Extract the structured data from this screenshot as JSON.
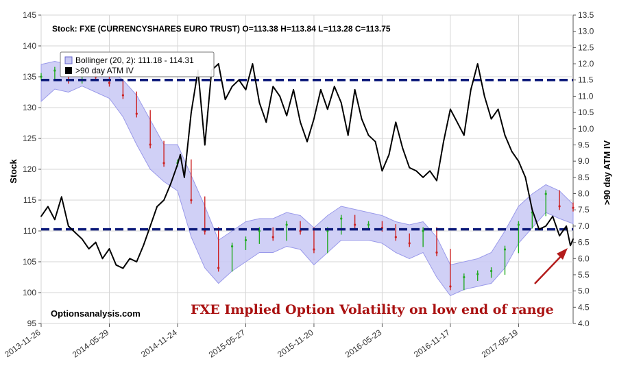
{
  "chart_data": {
    "type": "line",
    "info_line": "Stock: FXE (CURRENCYSHARES EURO TRUST) O=113.38  H=113.84  L=113.28  C=113.75",
    "ylabel_left": "Stock",
    "ylabel_right": ">90 day ATM IV",
    "ylim_left": [
      95,
      145
    ],
    "ylim_right": [
      4.0,
      13.5
    ],
    "yticks_left": [
      "95",
      "100",
      "105",
      "110",
      "115",
      "120",
      "125",
      "130",
      "135",
      "140",
      "145"
    ],
    "yticks_right": [
      "4.0",
      "4.5",
      "5.0",
      "5.5",
      "6.0",
      "6.5",
      "7.0",
      "7.5",
      "8.0",
      "8.5",
      "9.0",
      "9.5",
      "10.0",
      "10.5",
      "11.0",
      "11.5",
      "12.0",
      "12.5",
      "13.0",
      "13.5"
    ],
    "x_ticks": [
      "2013-11-26",
      "2014-05-29",
      "2014-11-24",
      "2015-05-27",
      "2015-11-20",
      "2016-05-23",
      "2016-11-17",
      "2017-05-19"
    ],
    "x_positions": [
      0,
      0.5,
      1,
      1.5,
      2,
      2.5,
      3,
      3.5
    ],
    "x_max": 3.9,
    "grid": true,
    "legend": {
      "position": "top-left",
      "entries": [
        {
          "label": "Bollinger (20, 2): 111.18 - 114.31",
          "color": "#9999ee"
        },
        {
          "label": ">90 day ATM IV",
          "color": "#000000"
        }
      ]
    },
    "reference_lines_iv": [
      11.5,
      6.9
    ],
    "watermark": "Optionsanalysis.com",
    "annotation": "FXE Implied Option Volatility on low end of range",
    "annotation_color": "#aa1111",
    "colors": {
      "price_up": "#22aa22",
      "price_down": "#cc2222",
      "band_fill": "#c8c8f4",
      "band_edge": "#9a9aea",
      "iv_line": "#000000",
      "ref_line": "#0c1a7a"
    },
    "price_series": {
      "name": "FXE",
      "x": [
        0,
        0.1,
        0.2,
        0.3,
        0.4,
        0.5,
        0.6,
        0.7,
        0.8,
        0.9,
        1.0,
        1.1,
        1.2,
        1.3,
        1.4,
        1.5,
        1.6,
        1.7,
        1.8,
        1.9,
        2.0,
        2.1,
        2.2,
        2.3,
        2.4,
        2.5,
        2.6,
        2.7,
        2.8,
        2.9,
        3.0,
        3.1,
        3.2,
        3.3,
        3.4,
        3.5,
        3.6,
        3.7,
        3.8,
        3.9
      ],
      "y": [
        135,
        136,
        134.5,
        136,
        135,
        134,
        132,
        129,
        124,
        121,
        121,
        115,
        110,
        104,
        107.5,
        108.5,
        110,
        109,
        111,
        110,
        107,
        110,
        112,
        111,
        111,
        110.5,
        109,
        108,
        110,
        106.5,
        101,
        102.5,
        103,
        103.5,
        107,
        111,
        113,
        116,
        114,
        113.75
      ]
    },
    "bollinger_band": {
      "upper": [
        137,
        137.5,
        137,
        137.5,
        136.5,
        136,
        134.5,
        132,
        128,
        124,
        124,
        119,
        114,
        108.5,
        110,
        111.5,
        112,
        112,
        113,
        112.5,
        110.5,
        112.5,
        114,
        113.5,
        113,
        112.5,
        111.5,
        111,
        111.5,
        109,
        104.5,
        105,
        105.5,
        106.5,
        110,
        114,
        116,
        117.5,
        116.5,
        114.31
      ],
      "lower": [
        131,
        133,
        132.5,
        133.5,
        132.5,
        131.5,
        128.5,
        124,
        120,
        118,
        116.5,
        109,
        104,
        101.5,
        103.5,
        105,
        106.5,
        106.5,
        107.5,
        107,
        104.5,
        106.5,
        108.5,
        108.5,
        108.5,
        108,
        106.5,
        105.5,
        106.5,
        102.5,
        99.5,
        100.5,
        101,
        101.5,
        104,
        108,
        110.5,
        113,
        112,
        111.18
      ]
    },
    "iv_series": {
      "name": ">90 day ATM IV",
      "x": [
        0,
        0.05,
        0.1,
        0.15,
        0.2,
        0.25,
        0.3,
        0.35,
        0.4,
        0.45,
        0.5,
        0.55,
        0.6,
        0.65,
        0.7,
        0.75,
        0.8,
        0.85,
        0.9,
        0.95,
        1.0,
        1.02,
        1.05,
        1.1,
        1.15,
        1.2,
        1.25,
        1.3,
        1.35,
        1.4,
        1.45,
        1.5,
        1.55,
        1.6,
        1.65,
        1.7,
        1.75,
        1.8,
        1.85,
        1.9,
        1.95,
        2.0,
        2.05,
        2.1,
        2.15,
        2.2,
        2.25,
        2.3,
        2.35,
        2.4,
        2.45,
        2.5,
        2.55,
        2.6,
        2.65,
        2.7,
        2.75,
        2.8,
        2.85,
        2.9,
        2.95,
        3.0,
        3.05,
        3.1,
        3.15,
        3.2,
        3.25,
        3.3,
        3.35,
        3.4,
        3.45,
        3.5,
        3.55,
        3.6,
        3.65,
        3.7,
        3.75,
        3.8,
        3.85,
        3.88,
        3.9
      ],
      "y": [
        7.3,
        7.6,
        7.2,
        7.9,
        7.0,
        6.8,
        6.6,
        6.3,
        6.5,
        6.0,
        6.3,
        5.8,
        5.7,
        6.0,
        5.9,
        6.4,
        7.0,
        7.6,
        7.8,
        8.3,
        8.9,
        9.2,
        8.5,
        10.5,
        11.8,
        9.5,
        11.8,
        12.0,
        10.9,
        11.3,
        11.5,
        11.2,
        12.0,
        10.8,
        10.2,
        11.3,
        11.0,
        10.4,
        11.2,
        10.2,
        9.6,
        10.3,
        11.2,
        10.6,
        11.3,
        10.8,
        9.8,
        11.2,
        10.3,
        9.8,
        9.6,
        8.7,
        9.2,
        10.2,
        9.4,
        8.8,
        8.7,
        8.5,
        8.7,
        8.4,
        9.6,
        10.6,
        10.2,
        9.8,
        11.2,
        12.0,
        11.0,
        10.3,
        10.6,
        9.8,
        9.3,
        9.0,
        8.5,
        7.5,
        6.9,
        7.0,
        7.3,
        6.7,
        7.0,
        6.4,
        6.6
      ]
    }
  }
}
